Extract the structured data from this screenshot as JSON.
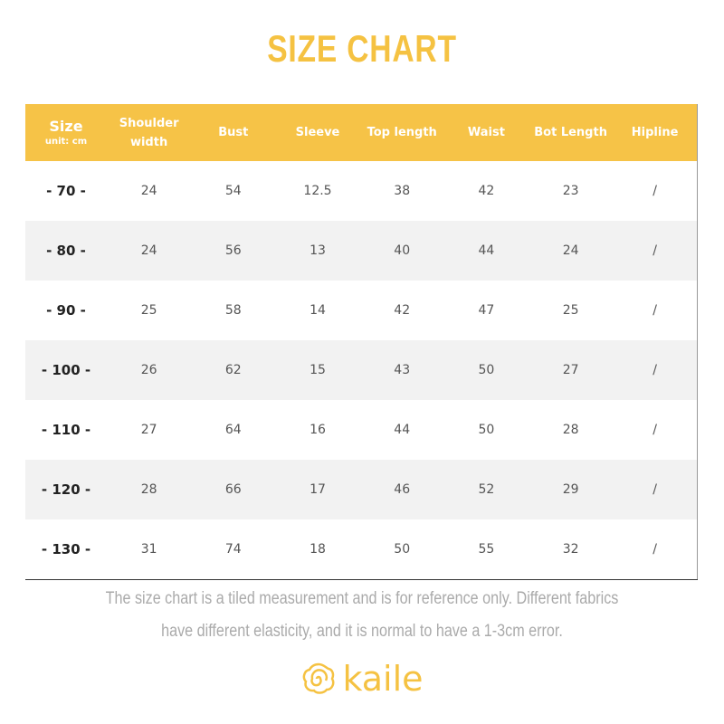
{
  "header": {
    "title": "SIZE CHART"
  },
  "table": {
    "size_label": "Size",
    "unit_label": "unit: cm",
    "columns": [
      "Shoulder width",
      "Bust",
      "Sleeve",
      "Top length",
      "Waist",
      "Bot Length",
      "Hipline"
    ],
    "rows": [
      [
        "- 70 -",
        "24",
        "54",
        "12.5",
        "38",
        "42",
        "23",
        "/"
      ],
      [
        "- 80 -",
        "24",
        "56",
        "13",
        "40",
        "44",
        "24",
        "/"
      ],
      [
        "- 90 -",
        "25",
        "58",
        "14",
        "42",
        "47",
        "25",
        "/"
      ],
      [
        "- 100 -",
        "26",
        "62",
        "15",
        "43",
        "50",
        "27",
        "/"
      ],
      [
        "- 110 -",
        "27",
        "64",
        "16",
        "44",
        "50",
        "28",
        "/"
      ],
      [
        "- 120 -",
        "28",
        "66",
        "17",
        "46",
        "52",
        "29",
        "/"
      ],
      [
        "- 130 -",
        "31",
        "74",
        "18",
        "50",
        "55",
        "32",
        "/"
      ]
    ]
  },
  "note": "The size chart is a tiled measurement and is for reference only. Different fabrics have different elasticity, and it is normal to have a 1-3cm error.",
  "logo": "kaile"
}
